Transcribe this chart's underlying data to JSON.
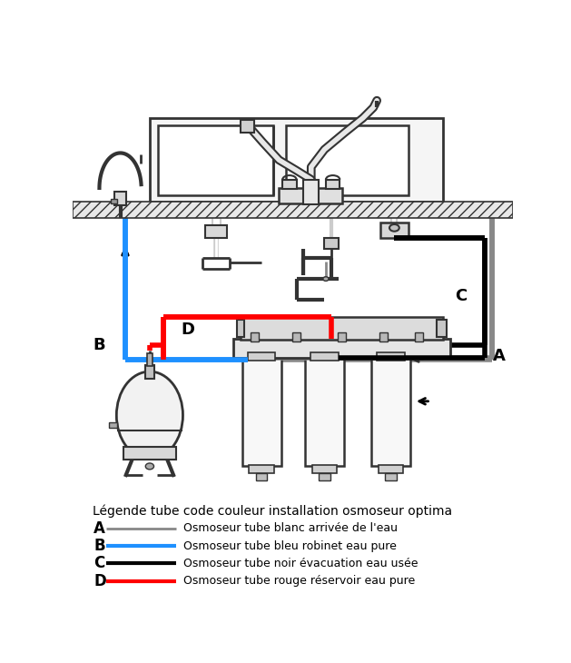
{
  "legend_title": "Légende tube code couleur installation osmoseur optima",
  "legend_items": [
    {
      "label": "A",
      "color": "#888888",
      "text": "Osmoseur tube blanc arrivée de l'eau",
      "lw": 2,
      "ls": "solid"
    },
    {
      "label": "B",
      "color": "#1e90ff",
      "text": "Osmoseur tube bleu robinet eau pure",
      "lw": 3,
      "ls": "solid"
    },
    {
      "label": "C",
      "color": "#000000",
      "text": "Osmoseur tube noir évacuation eau usée",
      "lw": 3,
      "ls": "solid"
    },
    {
      "label": "D",
      "color": "#ff0000",
      "text": "Osmoseur tube rouge réservoir eau pure",
      "lw": 3,
      "ls": "solid"
    }
  ],
  "bg_color": "#ffffff",
  "line_color": "#333333"
}
